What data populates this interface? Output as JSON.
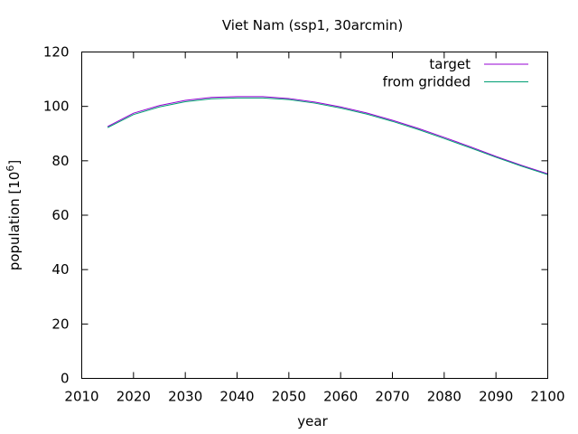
{
  "chart_data": {
    "type": "line",
    "title": "Viet Nam (ssp1, 30arcmin)",
    "xlabel": "year",
    "ylabel_base": "population [10",
    "ylabel_exp": "6",
    "ylabel_close": "]",
    "xlim": [
      2010,
      2100
    ],
    "ylim": [
      0,
      120
    ],
    "xticks": [
      2010,
      2020,
      2030,
      2040,
      2050,
      2060,
      2070,
      2080,
      2090,
      2100
    ],
    "yticks": [
      0,
      20,
      40,
      60,
      80,
      100,
      120
    ],
    "grid": false,
    "legend_position": "top-right",
    "x": [
      2015,
      2020,
      2025,
      2030,
      2035,
      2040,
      2045,
      2050,
      2055,
      2060,
      2065,
      2070,
      2075,
      2080,
      2085,
      2090,
      2095,
      2100
    ],
    "series": [
      {
        "name": "target",
        "color": "#9400d3",
        "values": [
          92.6,
          97.5,
          100.3,
          102.2,
          103.3,
          103.6,
          103.6,
          102.9,
          101.6,
          99.8,
          97.6,
          94.9,
          91.9,
          88.6,
          85.2,
          81.6,
          78.3,
          75.2
        ]
      },
      {
        "name": "from gridded",
        "color": "#009e73",
        "values": [
          92.2,
          97.0,
          99.8,
          101.7,
          102.8,
          103.1,
          103.1,
          102.5,
          101.2,
          99.4,
          97.2,
          94.5,
          91.5,
          88.2,
          84.8,
          81.3,
          78.0,
          74.9
        ]
      }
    ]
  }
}
